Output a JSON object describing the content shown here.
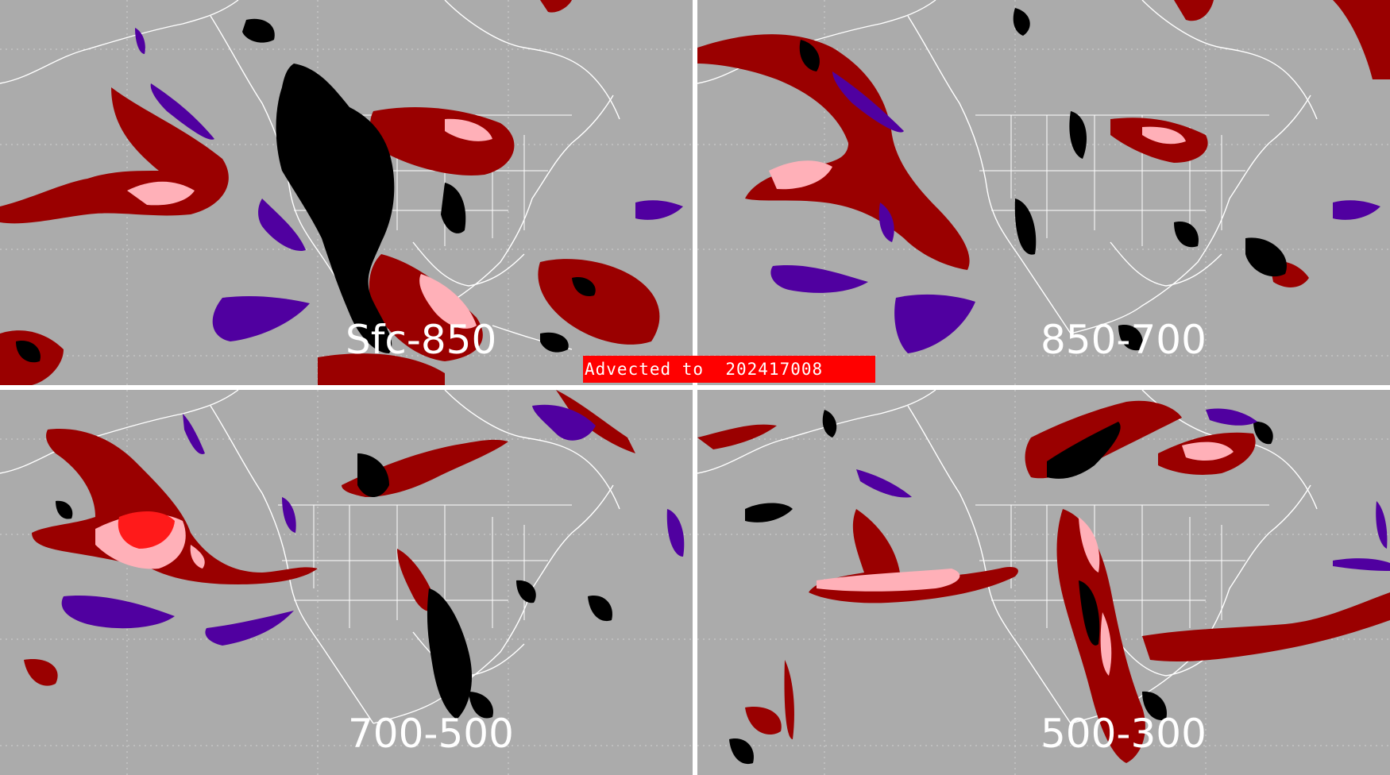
{
  "banner": {
    "text": "Advected to  202417008"
  },
  "colors": {
    "background": "#ababab",
    "land_outline": "#ffffff",
    "dark_red": "#9a0000",
    "pink": "#ffb0b8",
    "bright_red": "#ff1a1a",
    "black": "#000000",
    "purple": "#5000a0",
    "banner": "#ff0000"
  },
  "panels": [
    {
      "id": "top-left",
      "label": "Sfc-850"
    },
    {
      "id": "top-right",
      "label": "850-700"
    },
    {
      "id": "bottom-left",
      "label": "700-500"
    },
    {
      "id": "bottom-right",
      "label": "500-300"
    }
  ]
}
